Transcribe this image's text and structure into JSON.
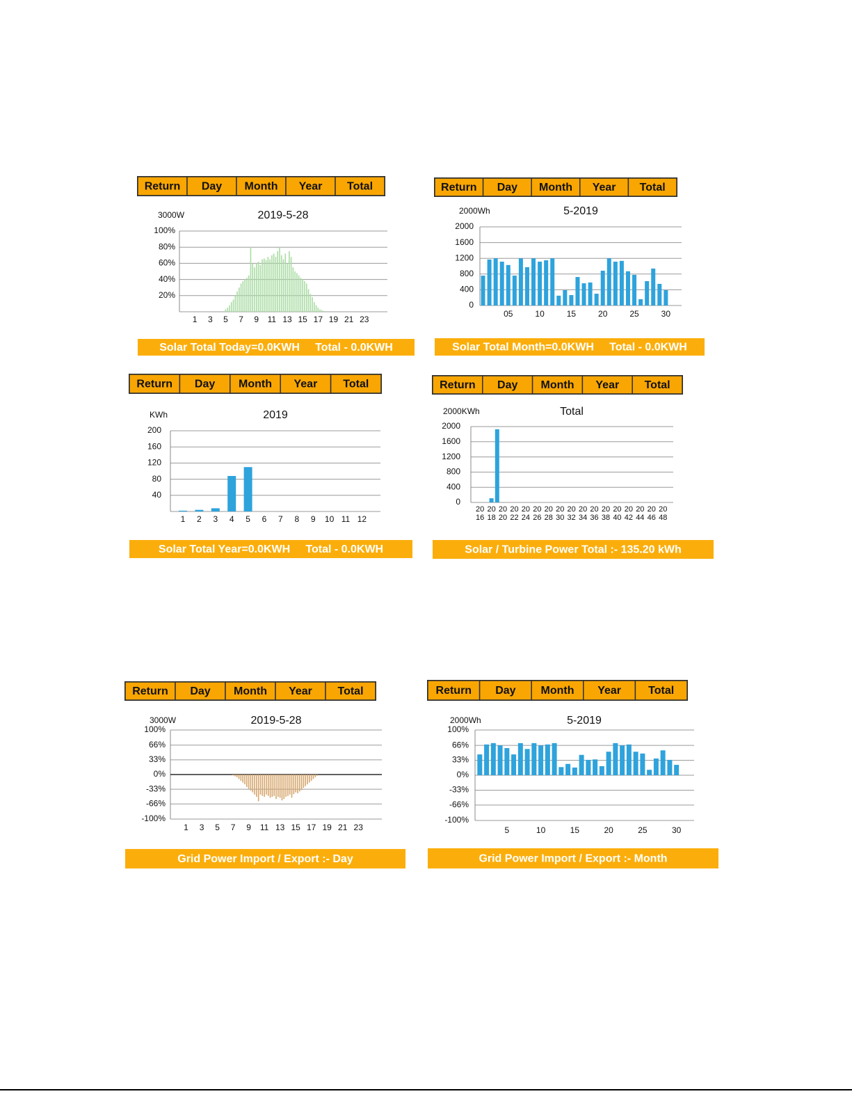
{
  "chart_data": [
    {
      "type": "bar",
      "title": "2019-5-28",
      "y_label": "3000W",
      "color": "#a9dca3",
      "grid": true,
      "x": [
        5,
        5.25,
        5.5,
        5.75,
        6,
        6.25,
        6.5,
        6.75,
        7,
        7.25,
        7.5,
        7.75,
        8,
        8.25,
        8.5,
        8.75,
        9,
        9.25,
        9.5,
        9.75,
        10,
        10.25,
        10.5,
        10.75,
        11,
        11.25,
        11.5,
        11.75,
        12,
        12.25,
        12.5,
        12.75,
        13,
        13.25,
        13.5,
        13.75,
        14,
        14.25,
        14.5,
        14.75,
        15,
        15.25,
        15.5,
        15.75,
        16,
        16.25,
        16.5,
        16.75,
        17,
        17.25,
        17.5,
        17.75
      ],
      "values": [
        3,
        5,
        8,
        12,
        15,
        20,
        25,
        30,
        35,
        38,
        40,
        42,
        45,
        80,
        60,
        55,
        60,
        62,
        58,
        65,
        66,
        64,
        68,
        65,
        70,
        72,
        68,
        75,
        80,
        70,
        65,
        72,
        60,
        75,
        68,
        55,
        50,
        48,
        45,
        42,
        40,
        38,
        35,
        28,
        22,
        18,
        12,
        8,
        5,
        3,
        2,
        1
      ],
      "xlim": [
        -1,
        26
      ],
      "xticks": [
        1,
        3,
        5,
        7,
        9,
        11,
        13,
        15,
        17,
        19,
        21,
        23
      ],
      "ylim": [
        0,
        100
      ],
      "yticks": [
        {
          "value": 20,
          "label": "20%"
        },
        {
          "value": 40,
          "label": "40%"
        },
        {
          "value": 60,
          "label": "60%"
        },
        {
          "value": 80,
          "label": "80%"
        },
        {
          "value": 100,
          "label": "100%"
        }
      ]
    },
    {
      "type": "bar",
      "title": "5-2019",
      "y_label": "2000Wh",
      "color": "#2ea3dc",
      "grid": true,
      "x": [
        1,
        2,
        3,
        4,
        5,
        6,
        7,
        8,
        9,
        10,
        11,
        12,
        13,
        14,
        15,
        16,
        17,
        18,
        19,
        20,
        21,
        22,
        23,
        24,
        25,
        26,
        27,
        28,
        29,
        30
      ],
      "values": [
        760,
        1170,
        1200,
        1115,
        1030,
        760,
        1200,
        975,
        1200,
        1115,
        1150,
        1200,
        250,
        390,
        265,
        725,
        565,
        585,
        300,
        885,
        1200,
        1115,
        1135,
        870,
        780,
        160,
        620,
        940,
        550,
        390
      ],
      "xlim": [
        0.5,
        32.5
      ],
      "xticks": [
        {
          "value": 5,
          "label": "05"
        },
        10,
        15,
        20,
        25,
        30
      ],
      "ylim": [
        0,
        2000
      ],
      "yticks": [
        0,
        400,
        800,
        1200,
        1600,
        2000
      ]
    },
    {
      "type": "bar",
      "title": "2019",
      "y_label": "KWh",
      "color": "#2ea3dc",
      "grid": true,
      "categories": [
        "1",
        "2",
        "3",
        "4",
        "5",
        "6",
        "7",
        "8",
        "9",
        "10",
        "11",
        "12"
      ],
      "values": [
        2,
        4,
        8,
        88,
        110,
        0,
        0,
        0,
        0,
        0,
        0,
        0
      ],
      "ylim": [
        0,
        200
      ],
      "yticks": [
        40,
        80,
        120,
        160,
        200
      ]
    },
    {
      "type": "bar",
      "title": "Total",
      "y_label": "2000KWh",
      "color": "#2ea3dc",
      "grid": true,
      "x": [
        2018,
        2019
      ],
      "values": [
        110,
        1930
      ],
      "xlim": [
        2014.4,
        2049.8
      ],
      "xticks": [
        2016,
        2018,
        2020,
        2022,
        2024,
        2026,
        2028,
        2030,
        2032,
        2034,
        2036,
        2038,
        2040,
        2042,
        2044,
        2046,
        2048
      ],
      "ylim": [
        0,
        2000
      ],
      "yticks": [
        0,
        400,
        800,
        1200,
        1600,
        2000
      ]
    },
    {
      "type": "bar",
      "title": "2019-5-28",
      "y_label": "3000W",
      "color": "#d6a66c",
      "grid": true,
      "zero_line": true,
      "x": [
        7,
        7.25,
        7.5,
        7.75,
        8,
        8.25,
        8.5,
        8.75,
        9,
        9.25,
        9.5,
        9.75,
        10,
        10.25,
        10.5,
        10.75,
        11,
        11.25,
        11.5,
        11.75,
        12,
        12.25,
        12.5,
        12.75,
        13,
        13.25,
        13.5,
        13.75,
        14,
        14.25,
        14.5,
        14.75,
        15,
        15.25,
        15.5,
        15.75,
        16,
        16.25,
        16.5,
        16.75,
        17,
        17.25,
        17.5,
        17.75
      ],
      "values": [
        -2,
        -4,
        -6,
        -10,
        -14,
        -18,
        -22,
        -28,
        -32,
        -36,
        -40,
        -45,
        -50,
        -60,
        -45,
        -48,
        -50,
        -45,
        -48,
        -52,
        -50,
        -48,
        -55,
        -50,
        -52,
        -58,
        -55,
        -50,
        -48,
        -45,
        -52,
        -44,
        -40,
        -42,
        -38,
        -35,
        -30,
        -26,
        -22,
        -18,
        -14,
        -10,
        -6,
        -3
      ],
      "xlim": [
        -1,
        26
      ],
      "xticks": [
        1,
        3,
        5,
        7,
        9,
        11,
        13,
        15,
        17,
        19,
        21,
        23
      ],
      "ylim": [
        -100,
        100
      ],
      "yticks": [
        {
          "value": 100,
          "label": "100%"
        },
        {
          "value": 66,
          "label": "66%"
        },
        {
          "value": 33,
          "label": "33%"
        },
        {
          "value": 0,
          "label": "0%"
        },
        {
          "value": -33,
          "label": "-33%"
        },
        {
          "value": -66,
          "label": "-66%"
        },
        {
          "value": -100,
          "label": "-100%"
        }
      ]
    },
    {
      "type": "bar",
      "title": "5-2019",
      "y_label": "2000Wh",
      "color": "#2ea3dc",
      "grid": true,
      "x": [
        1,
        2,
        3,
        4,
        5,
        6,
        7,
        8,
        9,
        10,
        11,
        12,
        13,
        14,
        15,
        16,
        17,
        18,
        19,
        20,
        21,
        22,
        23,
        24,
        25,
        26,
        27,
        28,
        29,
        30
      ],
      "values": [
        46,
        68,
        71,
        66,
        60,
        46,
        71,
        58,
        71,
        66,
        68,
        71,
        18,
        25,
        17,
        45,
        34,
        35,
        20,
        52,
        71,
        66,
        68,
        52,
        48,
        12,
        37,
        55,
        34,
        23
      ],
      "xlim": [
        0.3,
        32.6
      ],
      "xticks": [
        5,
        10,
        15,
        20,
        25,
        30
      ],
      "ylim": [
        -100,
        100
      ],
      "yticks": [
        {
          "value": 100,
          "label": "100%"
        },
        {
          "value": 66,
          "label": "66%"
        },
        {
          "value": 33,
          "label": "33%"
        },
        {
          "value": 0,
          "label": "0%"
        },
        {
          "value": -33,
          "label": "-33%"
        },
        {
          "value": -66,
          "label": "-66%"
        },
        {
          "value": -100,
          "label": "-100%"
        }
      ]
    }
  ],
  "panels": [
    {
      "buttons": [
        "Return",
        "Day",
        "Month",
        "Year",
        "Total"
      ],
      "banner": "Solar Total Today=0.0KWH     Total - 0.0KWH"
    },
    {
      "buttons": [
        "Return",
        "Day",
        "Month",
        "Year",
        "Total"
      ],
      "banner": "Solar Total Month=0.0KWH     Total - 0.0KWH"
    },
    {
      "buttons": [
        "Return",
        "Day",
        "Month",
        "Year",
        "Total"
      ],
      "banner": "Solar Total Year=0.0KWH     Total - 0.0KWH"
    },
    {
      "buttons": [
        "Return",
        "Day",
        "Month",
        "Year",
        "Total"
      ],
      "banner": "Solar / Turbine Power Total :- 135.20 kWh"
    },
    {
      "buttons": [
        "Return",
        "Day",
        "Month",
        "Year",
        "Total"
      ],
      "banner": "Grid Power Import / Export :- Day"
    },
    {
      "buttons": [
        "Return",
        "Day",
        "Month",
        "Year",
        "Total"
      ],
      "banner": "Grid Power Import / Export :- Month"
    }
  ]
}
